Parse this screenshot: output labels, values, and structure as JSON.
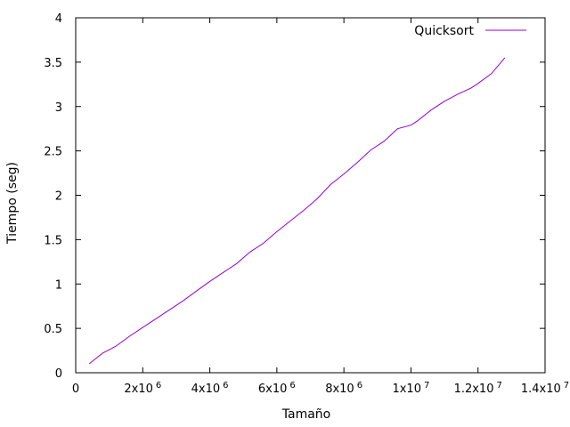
{
  "chart_data": {
    "type": "line",
    "title": "",
    "xlabel": "Tamaño",
    "ylabel": "Tiempo (seg)",
    "xlim": [
      0,
      14000000
    ],
    "ylim": [
      0,
      4
    ],
    "grid": false,
    "legend_position": "top-right",
    "x_ticks": [
      {
        "value": 0,
        "mant": "0",
        "exp": ""
      },
      {
        "value": 2000000,
        "mant": "2x10",
        "exp": "6"
      },
      {
        "value": 4000000,
        "mant": "4x10",
        "exp": "6"
      },
      {
        "value": 6000000,
        "mant": "6x10",
        "exp": "6"
      },
      {
        "value": 8000000,
        "mant": "8x10",
        "exp": "6"
      },
      {
        "value": 10000000,
        "mant": "1x10",
        "exp": "7"
      },
      {
        "value": 12000000,
        "mant": "1.2x10",
        "exp": "7"
      },
      {
        "value": 14000000,
        "mant": "1.4x10",
        "exp": "7"
      }
    ],
    "y_ticks": [
      {
        "value": 0,
        "label": "0"
      },
      {
        "value": 0.5,
        "label": "0.5"
      },
      {
        "value": 1,
        "label": "1"
      },
      {
        "value": 1.5,
        "label": "1.5"
      },
      {
        "value": 2,
        "label": "2"
      },
      {
        "value": 2.5,
        "label": "2.5"
      },
      {
        "value": 3,
        "label": "3"
      },
      {
        "value": 3.5,
        "label": "3.5"
      },
      {
        "value": 4,
        "label": "4"
      }
    ],
    "series": [
      {
        "name": "Quicksort",
        "color": "#9400d3",
        "x": [
          400000,
          800000,
          1200000,
          1600000,
          2000000,
          2400000,
          2800000,
          3200000,
          3600000,
          4000000,
          4400000,
          4800000,
          5200000,
          5600000,
          6000000,
          6400000,
          6800000,
          7200000,
          7600000,
          8000000,
          8400000,
          8800000,
          9200000,
          9600000,
          10000000,
          10200000,
          10600000,
          11000000,
          11400000,
          11800000,
          12000000,
          12400000,
          12800000
        ],
        "y": [
          0.1,
          0.22,
          0.3,
          0.41,
          0.51,
          0.61,
          0.71,
          0.81,
          0.92,
          1.03,
          1.13,
          1.23,
          1.36,
          1.46,
          1.59,
          1.71,
          1.83,
          1.96,
          2.12,
          2.24,
          2.37,
          2.51,
          2.61,
          2.75,
          2.79,
          2.84,
          2.96,
          3.06,
          3.14,
          3.21,
          3.26,
          3.37,
          3.55
        ]
      }
    ]
  }
}
